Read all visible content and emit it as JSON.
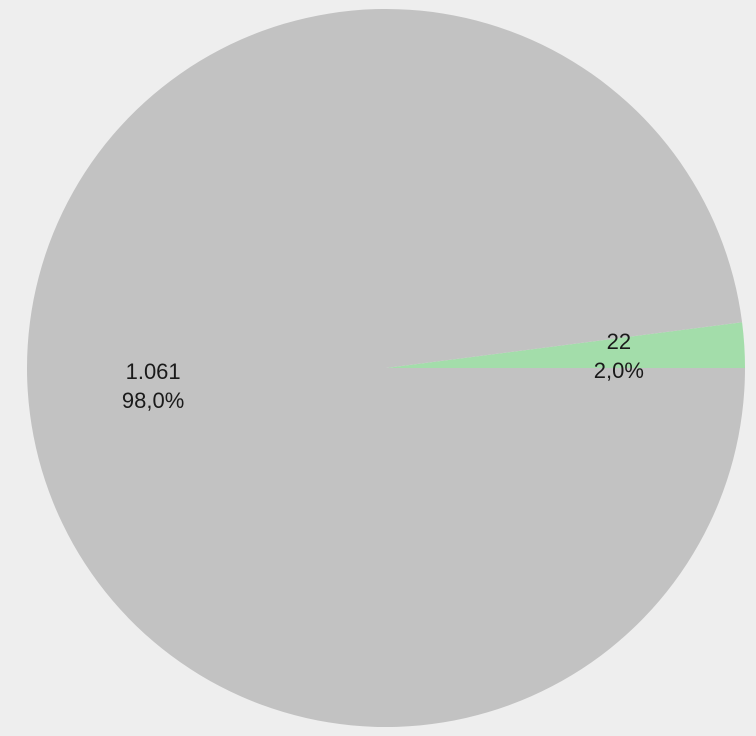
{
  "background": "#eeeeee",
  "chart_data": {
    "type": "pie",
    "title": "",
    "slices": [
      {
        "value": 22,
        "value_label": "22",
        "percent_label": "2,0%",
        "color": "#a3ddaa"
      },
      {
        "value": 1061,
        "value_label": "1.061",
        "percent_label": "98,0%",
        "color": "#c2c2c2"
      }
    ],
    "start_direction": "right",
    "order": "counterclockwise",
    "legend": "none"
  }
}
